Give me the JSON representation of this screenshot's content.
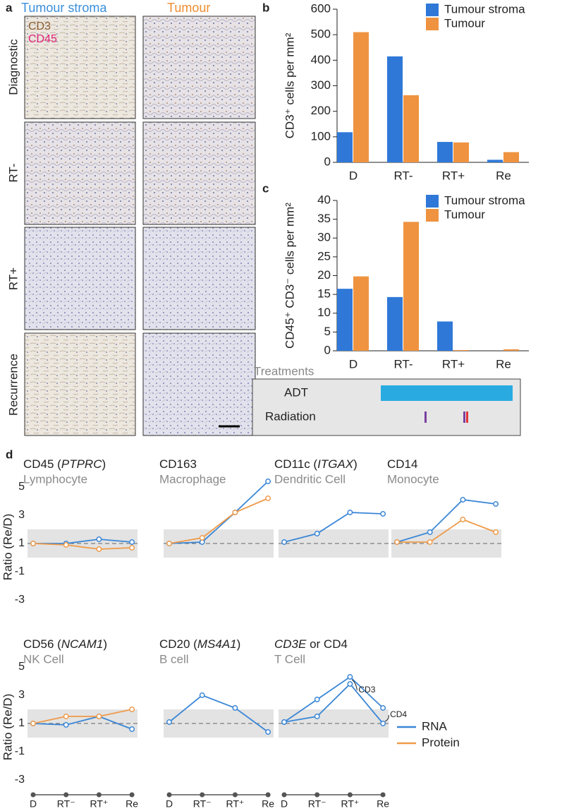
{
  "panel_a": {
    "label": "a",
    "columns": [
      "Tumour stroma",
      "Tumour"
    ],
    "stains": [
      "CD3",
      "CD45"
    ],
    "rows": [
      "Diagnostic",
      "RT-",
      "RT+",
      "Recurrence"
    ]
  },
  "treatments": {
    "title": "Treatments",
    "rows": [
      "ADT",
      "Radiation"
    ]
  },
  "legend_d": [
    {
      "name": "RNA",
      "color": "#3a86d6"
    },
    {
      "name": "Protein",
      "color": "#ee9b4a"
    }
  ],
  "chart_data": [
    {
      "type": "bar",
      "panel": "b",
      "ylabel": "CD3⁺ cells per mm²",
      "categories": [
        "D",
        "RT-",
        "RT+",
        "Re"
      ],
      "series": [
        {
          "name": "Tumour stroma",
          "color": "#2f78d8",
          "values": [
            118,
            415,
            80,
            10
          ]
        },
        {
          "name": "Tumour",
          "color": "#ef9340",
          "values": [
            510,
            263,
            78,
            40
          ]
        }
      ],
      "ylim": [
        0,
        600
      ],
      "yticks": [
        0,
        100,
        200,
        300,
        400,
        500,
        600
      ],
      "legend": "top-right"
    },
    {
      "type": "bar",
      "panel": "c",
      "ylabel": "CD45⁺ CD3⁻ cells per mm²",
      "categories": [
        "D",
        "RT-",
        "RT+",
        "Re"
      ],
      "series": [
        {
          "name": "Tumour stroma",
          "color": "#2f78d8",
          "values": [
            16.5,
            14.3,
            7.8,
            0
          ]
        },
        {
          "name": "Tumour",
          "color": "#ef9340",
          "values": [
            19.8,
            34.3,
            0.2,
            0.4
          ]
        }
      ],
      "ylim": [
        0,
        40
      ],
      "yticks": [
        0,
        5,
        10,
        15,
        20,
        25,
        30,
        35,
        40
      ],
      "legend": "top-right"
    },
    {
      "type": "line",
      "panel": "d",
      "title": [
        {
          "text": "CD45 ("
        },
        {
          "text": "PTPRC",
          "italic": true
        },
        {
          "text": ")"
        }
      ],
      "subtitle": "Lymphocyte",
      "ylabel": "Ratio (Re/D)",
      "ylim": [
        -3.5,
        5.5
      ],
      "yticks": [
        5,
        3,
        1,
        -1,
        -3
      ],
      "band": [
        0,
        2
      ],
      "reference_line": 1,
      "series": [
        {
          "color": "#3a86d6",
          "values": [
            1,
            1,
            1.3,
            1.1
          ]
        },
        {
          "color": "#ee9b4a",
          "values": [
            1,
            0.9,
            0.6,
            0.7
          ]
        }
      ]
    },
    {
      "type": "line",
      "title": [
        {
          "text": "CD163"
        }
      ],
      "subtitle": "Macrophage",
      "ylim": [
        -3.5,
        5.5
      ],
      "band": [
        0,
        2
      ],
      "reference_line": 1,
      "series": [
        {
          "color": "#3a86d6",
          "values": [
            1,
            1.1,
            3.2,
            5.4
          ]
        },
        {
          "color": "#ee9b4a",
          "values": [
            1,
            1.4,
            3.2,
            4.2
          ]
        }
      ]
    },
    {
      "type": "line",
      "title": [
        {
          "text": "CD11c ("
        },
        {
          "text": "ITGAX",
          "italic": true
        },
        {
          "text": ")"
        }
      ],
      "subtitle": "Dendritic Cell",
      "ylim": [
        -3.5,
        5.5
      ],
      "band": [
        0,
        2
      ],
      "reference_line": 1,
      "series": [
        {
          "color": "#3a86d6",
          "values": [
            1.1,
            1.7,
            3.2,
            3.1
          ]
        }
      ]
    },
    {
      "type": "line",
      "title": [
        {
          "text": "CD14"
        }
      ],
      "subtitle": "Monocyte",
      "ylim": [
        -3.5,
        5.5
      ],
      "band": [
        0,
        2
      ],
      "reference_line": 1,
      "series": [
        {
          "color": "#3a86d6",
          "values": [
            1.1,
            1.8,
            4.1,
            3.8
          ]
        },
        {
          "color": "#ee9b4a",
          "values": [
            1.1,
            1.1,
            2.7,
            1.8
          ]
        }
      ]
    },
    {
      "type": "line",
      "title": [
        {
          "text": "CD56 ("
        },
        {
          "text": "NCAM1",
          "italic": true
        },
        {
          "text": ")"
        }
      ],
      "subtitle": "NK Cell",
      "ylabel": "Ratio (Re/D)",
      "ylim": [
        -3.5,
        5.5
      ],
      "yticks": [
        5,
        3,
        1,
        -1,
        -3
      ],
      "band": [
        0,
        2
      ],
      "reference_line": 1,
      "categories": [
        "D",
        "RT⁻",
        "RT⁺",
        "Re"
      ],
      "series": [
        {
          "color": "#3a86d6",
          "values": [
            1,
            0.9,
            1.5,
            0.6
          ]
        },
        {
          "color": "#ee9b4a",
          "values": [
            1,
            1.5,
            1.5,
            2.0
          ]
        }
      ]
    },
    {
      "type": "line",
      "title": [
        {
          "text": "CD20 ("
        },
        {
          "text": "MS4A1",
          "italic": true
        },
        {
          "text": ")"
        }
      ],
      "subtitle": "B cell",
      "ylim": [
        -3.5,
        5.5
      ],
      "band": [
        0,
        2
      ],
      "reference_line": 1,
      "categories": [
        "D",
        "RT⁻",
        "RT⁺",
        "Re"
      ],
      "series": [
        {
          "color": "#3a86d6",
          "values": [
            1.1,
            3,
            2.1,
            0.4
          ]
        }
      ]
    },
    {
      "type": "line",
      "title": [
        {
          "text": "CD3E",
          "italic": true
        },
        {
          "text": " or CD4"
        }
      ],
      "subtitle": "T Cell",
      "ylim": [
        -3.5,
        5.5
      ],
      "band": [
        0,
        2
      ],
      "reference_line": 1,
      "categories": [
        "D",
        "RT⁻",
        "RT⁺",
        "Re"
      ],
      "series": [
        {
          "name": "CD3",
          "color": "#3a86d6",
          "values": [
            1.1,
            2.7,
            4.3,
            2.1
          ]
        },
        {
          "name": "CD4",
          "color": "#3a86d6",
          "values": [
            1.1,
            1.5,
            3.8,
            1.0
          ]
        }
      ]
    }
  ]
}
